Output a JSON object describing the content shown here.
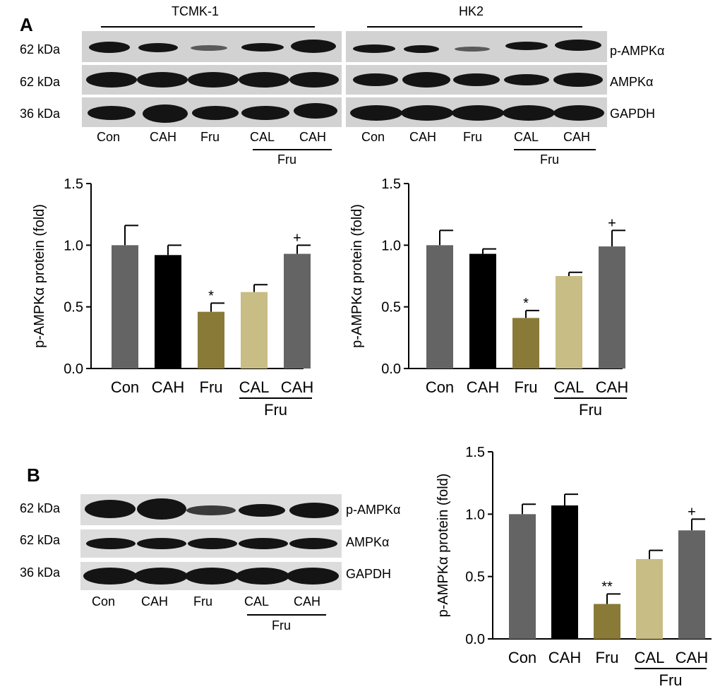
{
  "panel_a": {
    "letter": "A",
    "cell_lines": [
      "TCMK-1",
      "HK2"
    ],
    "size_markers": [
      "62 kDa",
      "62 kDa",
      "36 kDa"
    ],
    "proteins": [
      "p-AMPKα",
      "AMPKα",
      "GAPDH"
    ],
    "lanes": [
      "Con",
      "CAH",
      "Fru",
      "CAL",
      "CAH"
    ],
    "group_label": "Fru"
  },
  "panel_b": {
    "letter": "B",
    "size_markers": [
      "62 kDa",
      "62 kDa",
      "36 kDa"
    ],
    "proteins": [
      "p-AMPKα",
      "AMPKα",
      "GAPDH"
    ],
    "lanes": [
      "Con",
      "CAH",
      "Fru",
      "CAL",
      "CAH"
    ],
    "group_label": "Fru"
  },
  "chart_data": [
    {
      "type": "bar",
      "categories": [
        "Con",
        "CAH",
        "Fru",
        "CAL",
        "CAH"
      ],
      "group_label": "Fru",
      "values": [
        1.0,
        0.92,
        0.46,
        0.62,
        0.93
      ],
      "errors": [
        0.16,
        0.08,
        0.07,
        0.06,
        0.07
      ],
      "annotations": [
        "",
        "",
        "*",
        "",
        "+"
      ],
      "colors": [
        "#646464",
        "#000000",
        "#8a7a38",
        "#c8bd84",
        "#646464"
      ],
      "ylabel": "p-AMPKα protein (fold)",
      "yticks": [
        "0.0",
        "0.5",
        "1.0",
        "1.5"
      ],
      "ylim": [
        0,
        1.5
      ]
    },
    {
      "type": "bar",
      "categories": [
        "Con",
        "CAH",
        "Fru",
        "CAL",
        "CAH"
      ],
      "group_label": "Fru",
      "values": [
        1.0,
        0.93,
        0.41,
        0.75,
        0.99
      ],
      "errors": [
        0.12,
        0.04,
        0.06,
        0.03,
        0.13
      ],
      "annotations": [
        "",
        "",
        "*",
        "",
        "+"
      ],
      "colors": [
        "#646464",
        "#000000",
        "#8a7a38",
        "#c8bd84",
        "#646464"
      ],
      "ylabel": "p-AMPKα protein (fold)",
      "yticks": [
        "0.0",
        "0.5",
        "1.0",
        "1.5"
      ],
      "ylim": [
        0,
        1.5
      ]
    },
    {
      "type": "bar",
      "categories": [
        "Con",
        "CAH",
        "Fru",
        "CAL",
        "CAH"
      ],
      "group_label": "Fru",
      "values": [
        1.0,
        1.07,
        0.28,
        0.64,
        0.87
      ],
      "errors": [
        0.08,
        0.09,
        0.08,
        0.07,
        0.09
      ],
      "annotations": [
        "",
        "",
        "**",
        "",
        "+"
      ],
      "colors": [
        "#646464",
        "#000000",
        "#8a7a38",
        "#c8bd84",
        "#646464"
      ],
      "ylabel": "p-AMPKα protein (fold)",
      "yticks": [
        "0.0",
        "0.5",
        "1.0",
        "1.5"
      ],
      "ylim": [
        0,
        1.5
      ]
    }
  ]
}
